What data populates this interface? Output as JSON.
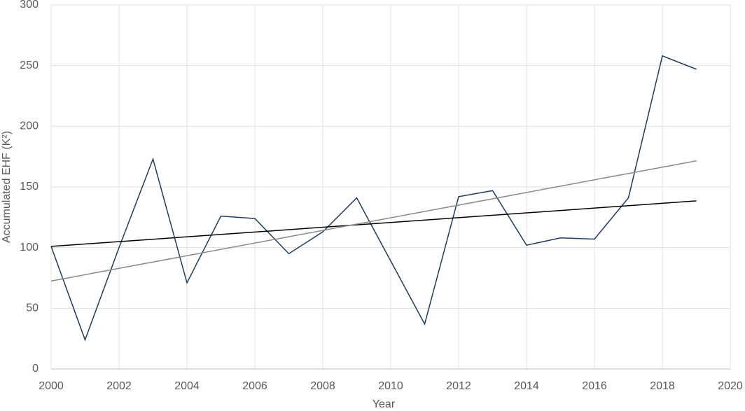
{
  "chart_data": {
    "type": "line",
    "x_label": "Year",
    "y_label": "Accumulated EHF (K²)",
    "xlim": [
      2000,
      2020
    ],
    "xticks": [
      2000,
      2002,
      2004,
      2006,
      2008,
      2010,
      2012,
      2014,
      2016,
      2018,
      2020
    ],
    "ylim": [
      0,
      300
    ],
    "yticks": [
      0,
      50,
      100,
      150,
      200,
      250,
      300
    ],
    "grid": true,
    "series": [
      {
        "color": "#1f3b5e",
        "width": 1.5,
        "x": [
          2000,
          2001,
          2002,
          2003,
          2004,
          2005,
          2006,
          2007,
          2008,
          2009,
          2010,
          2011,
          2012,
          2013,
          2014,
          2015,
          2016,
          2017,
          2018,
          2019
        ],
        "values": [
          101,
          24,
          100,
          173,
          71,
          126,
          124,
          95,
          113,
          141,
          89,
          37,
          142,
          147,
          102,
          108,
          107,
          141,
          258,
          247
        ]
      },
      {
        "color": "#000000",
        "width": 1.5,
        "x": [
          2000,
          2019
        ],
        "values": [
          101,
          138.5
        ]
      },
      {
        "color": "#888888",
        "width": 1.5,
        "x": [
          2000,
          2019
        ],
        "values": [
          72.5,
          171.5
        ]
      }
    ]
  }
}
